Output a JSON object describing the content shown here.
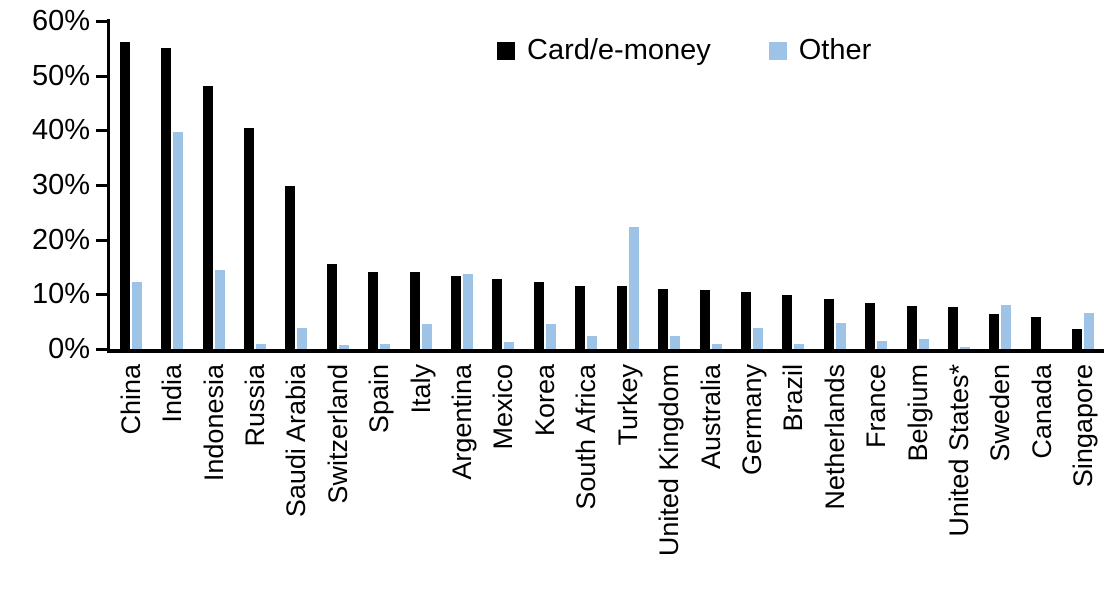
{
  "chart_data": {
    "type": "bar",
    "title": "",
    "xlabel": "",
    "ylabel": "",
    "ylim": [
      0,
      60
    ],
    "ytick_step": 10,
    "ytick_labels": [
      "0%",
      "10%",
      "20%",
      "30%",
      "40%",
      "50%",
      "60%"
    ],
    "grid": false,
    "legend_position": "top-center",
    "categories": [
      "China",
      "India",
      "Indonesia",
      "Russia",
      "Saudi Arabia",
      "Switzerland",
      "Spain",
      "Italy",
      "Argentina",
      "Mexico",
      "Korea",
      "South Africa",
      "Turkey",
      "United Kingdom",
      "Australia",
      "Germany",
      "Brazil",
      "Netherlands",
      "France",
      "Belgium",
      "United States*",
      "Sweden",
      "Canada",
      "Singapore"
    ],
    "series": [
      {
        "name": "Card/e-money",
        "color": "#000000",
        "values": [
          56.2,
          55.0,
          48.2,
          40.4,
          29.8,
          15.5,
          14.0,
          14.0,
          13.3,
          12.8,
          12.2,
          11.6,
          11.5,
          11.0,
          10.8,
          10.5,
          9.9,
          9.1,
          8.5,
          7.9,
          7.7,
          6.4,
          5.8,
          3.7
        ]
      },
      {
        "name": "Other",
        "color": "#9DC3E6",
        "values": [
          12.2,
          39.7,
          14.5,
          1.0,
          3.8,
          0.8,
          0.9,
          4.5,
          13.8,
          1.2,
          4.5,
          2.4,
          22.4,
          2.3,
          1.0,
          3.8,
          1.0,
          4.8,
          1.5,
          1.9,
          0.4,
          8.0,
          0.0,
          6.5
        ]
      }
    ]
  }
}
